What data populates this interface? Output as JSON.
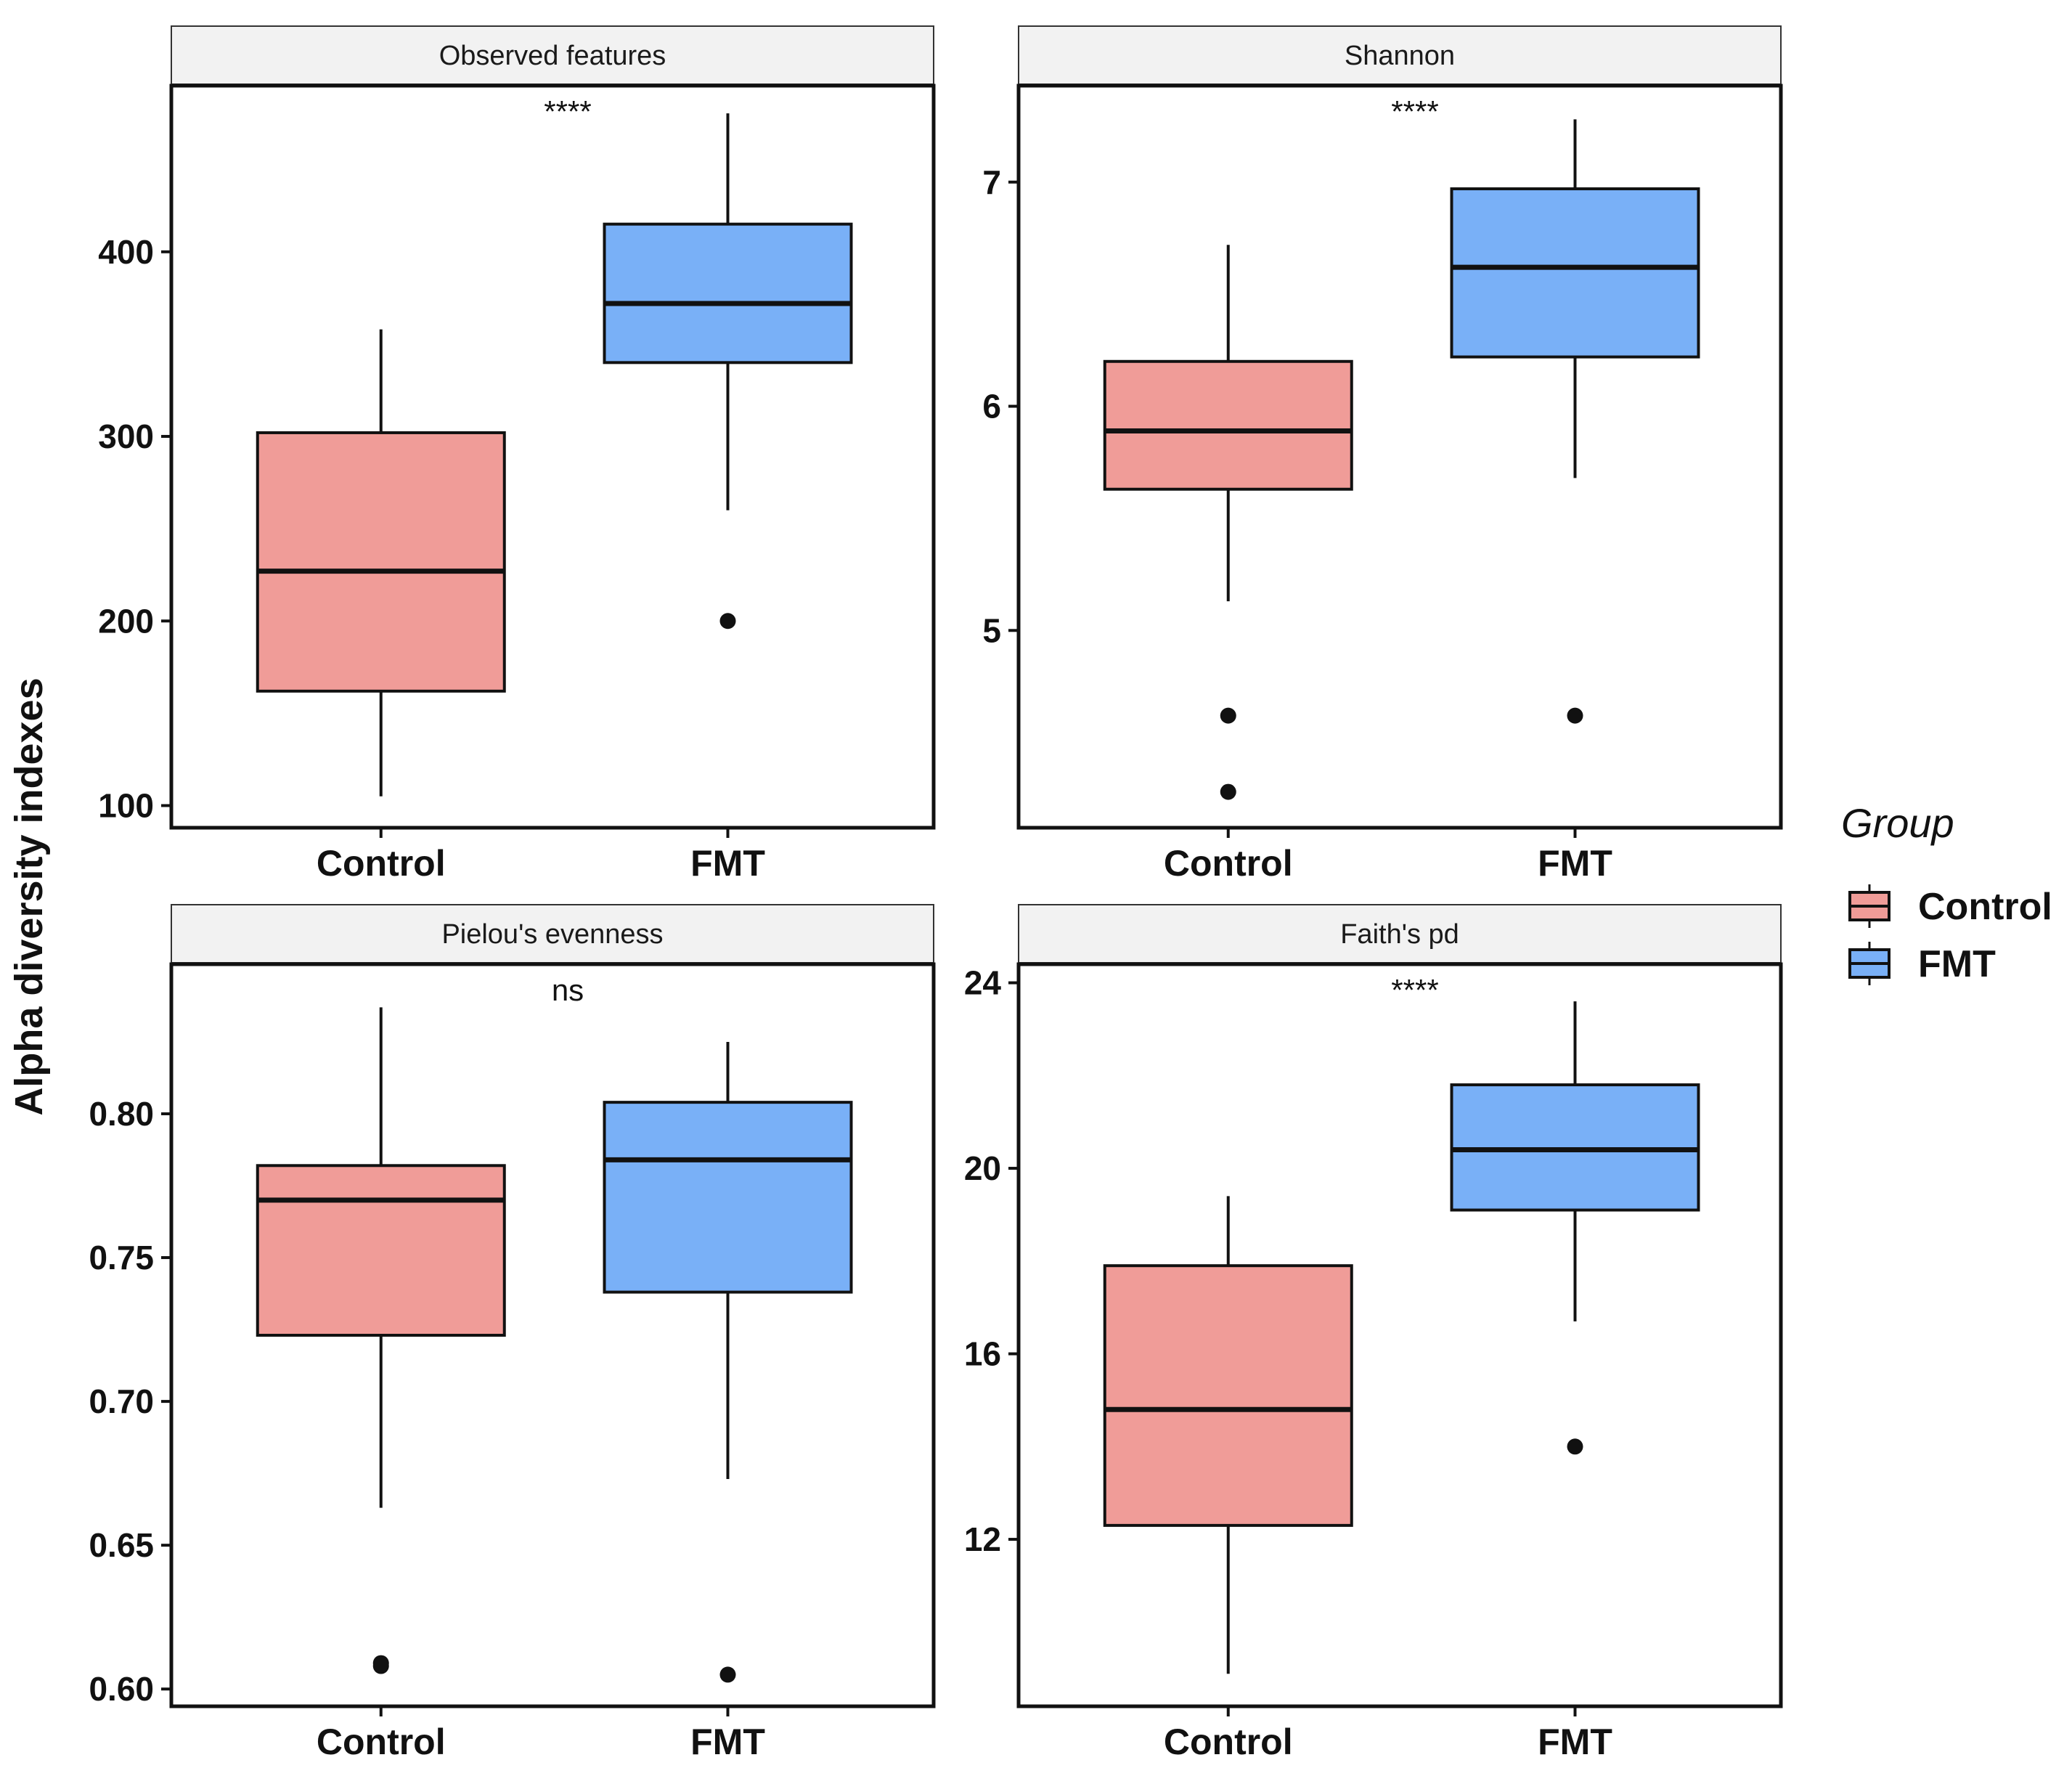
{
  "chart_data": [
    {
      "type": "box",
      "title": "Observed features",
      "significance": "****",
      "categories": [
        "Control",
        "FMT"
      ],
      "ylim": [
        88,
        490
      ],
      "yticks": [
        100,
        200,
        300,
        400
      ],
      "ytick_labels": [
        "100",
        "200",
        "300",
        "400"
      ],
      "boxes": [
        {
          "group": "Control",
          "whisker_low": 105,
          "q1": 162,
          "median": 227,
          "q3": 302,
          "whisker_high": 358,
          "outliers": []
        },
        {
          "group": "FMT",
          "whisker_low": 260,
          "q1": 340,
          "median": 372,
          "q3": 415,
          "whisker_high": 475,
          "outliers": [
            200
          ]
        }
      ]
    },
    {
      "type": "box",
      "title": "Shannon",
      "significance": "****",
      "categories": [
        "Control",
        "FMT"
      ],
      "ylim": [
        4.12,
        7.43
      ],
      "yticks": [
        5,
        6,
        7
      ],
      "ytick_labels": [
        "5",
        "6",
        "7"
      ],
      "boxes": [
        {
          "group": "Control",
          "whisker_low": 5.13,
          "q1": 5.63,
          "median": 5.89,
          "q3": 6.2,
          "whisker_high": 6.72,
          "outliers": [
            4.62,
            4.28
          ]
        },
        {
          "group": "FMT",
          "whisker_low": 5.68,
          "q1": 6.22,
          "median": 6.62,
          "q3": 6.97,
          "whisker_high": 7.28,
          "outliers": [
            4.62
          ]
        }
      ]
    },
    {
      "type": "box",
      "title": "Pielou's evenness",
      "significance": "ns",
      "categories": [
        "Control",
        "FMT"
      ],
      "ylim": [
        0.594,
        0.852
      ],
      "yticks": [
        0.6,
        0.65,
        0.7,
        0.75,
        0.8
      ],
      "ytick_labels": [
        "0.60",
        "0.65",
        "0.70",
        "0.75",
        "0.80"
      ],
      "boxes": [
        {
          "group": "Control",
          "whisker_low": 0.663,
          "q1": 0.723,
          "median": 0.77,
          "q3": 0.782,
          "whisker_high": 0.837,
          "outliers": [
            0.609,
            0.608
          ]
        },
        {
          "group": "FMT",
          "whisker_low": 0.673,
          "q1": 0.738,
          "median": 0.784,
          "q3": 0.804,
          "whisker_high": 0.825,
          "outliers": [
            0.605
          ]
        }
      ]
    },
    {
      "type": "box",
      "title": "Faith's pd",
      "significance": "****",
      "categories": [
        "Control",
        "FMT"
      ],
      "ylim": [
        8.4,
        24.4
      ],
      "yticks": [
        12,
        16,
        20,
        24
      ],
      "ytick_labels": [
        "12",
        "16",
        "20",
        "24"
      ],
      "boxes": [
        {
          "group": "Control",
          "whisker_low": 9.1,
          "q1": 12.3,
          "median": 14.8,
          "q3": 17.9,
          "whisker_high": 19.4,
          "outliers": []
        },
        {
          "group": "FMT",
          "whisker_low": 16.7,
          "q1": 19.1,
          "median": 20.4,
          "q3": 21.8,
          "whisker_high": 23.6,
          "outliers": [
            14.0
          ]
        }
      ]
    }
  ],
  "ylabel": "Alpha diversity indexes",
  "legend": {
    "title": "Group",
    "items": [
      {
        "label": "Control",
        "color": "#f09c98"
      },
      {
        "label": "FMT",
        "color": "#79b0f7"
      }
    ],
    "placement": "right"
  },
  "colors": {
    "Control": "#f09c98",
    "FMT": "#79b0f7",
    "strip_bg": "#f2f2f2",
    "outline": "#111111"
  }
}
